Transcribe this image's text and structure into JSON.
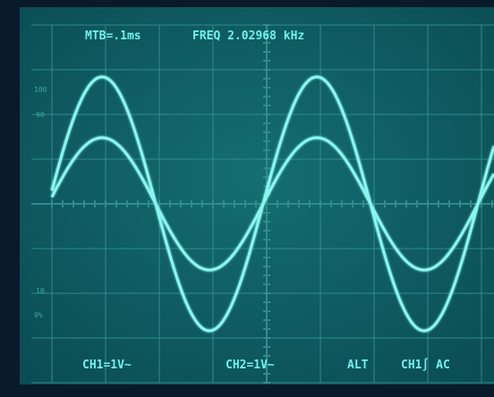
{
  "readout": {
    "timebase": "MTB=.1ms",
    "frequency": "FREQ 2.02968 kHz",
    "ch1": "CH1=1V∼",
    "ch2": "CH2=1V∼",
    "mode": "ALT",
    "trigger": "CH1∫ AC"
  },
  "graticule": {
    "top_100": "100",
    "top_90": "90",
    "bottom_10": "10",
    "bottom_0": "0%"
  }
}
